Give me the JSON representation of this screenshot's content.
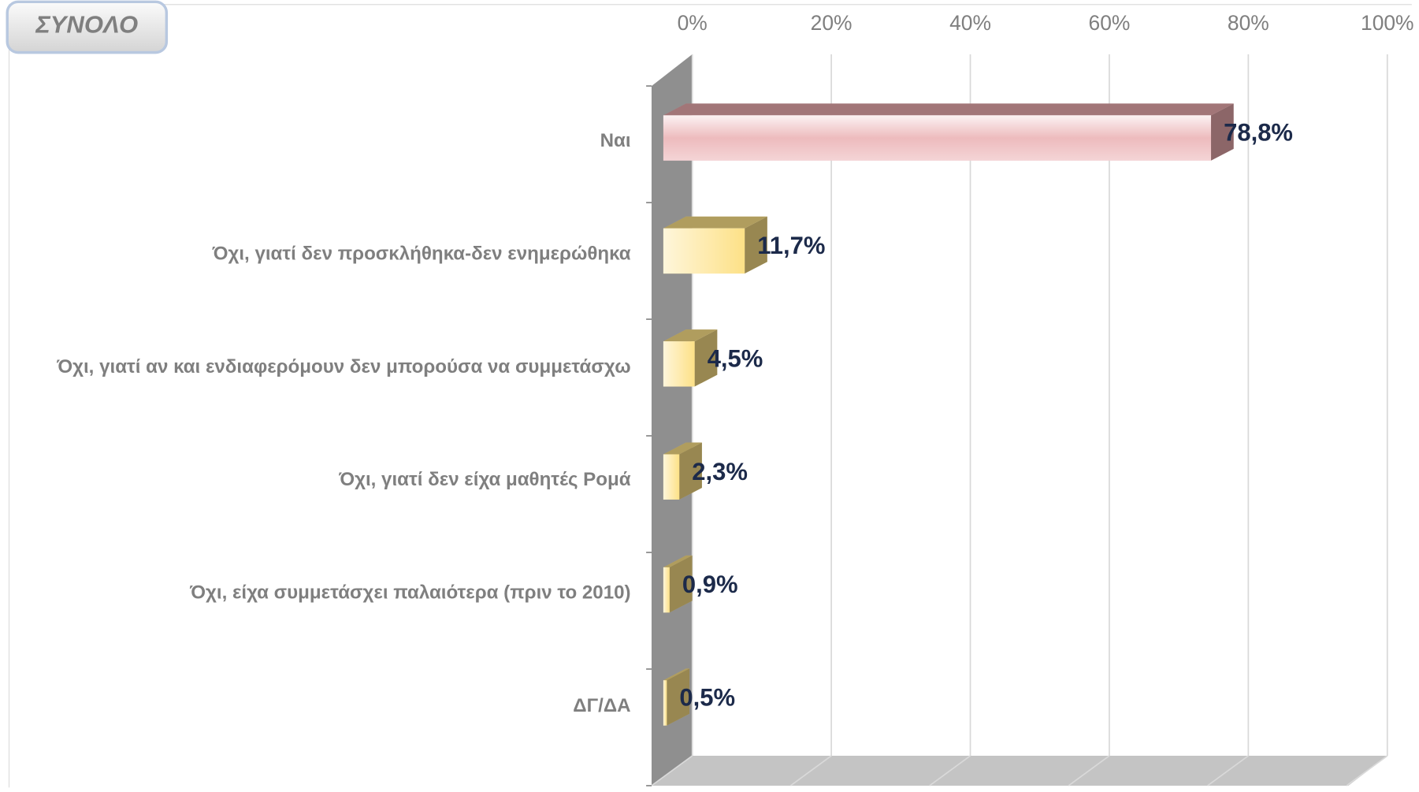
{
  "chart_data": {
    "type": "bar3d",
    "orientation": "horizontal",
    "title": "ΣΥΝΟΛΟ",
    "categories": [
      "Ναι",
      "Όχι, γιατί δεν προσκλήθηκα-δεν ενημερώθηκα",
      "Όχι, γιατί αν και ενδιαφερόμουν δεν μπορούσα να συμμετάσχω",
      "Όχι, γιατί δεν είχα μαθητές Ρομά",
      "Όχι, είχα συμμετάσχει παλαιότερα (πριν το 2010)",
      "ΔΓ/ΔΑ"
    ],
    "values": [
      78.8,
      11.7,
      4.5,
      2.3,
      0.9,
      0.5
    ],
    "value_labels": [
      "78,8%",
      "11,7%",
      "4,5%",
      "2,3%",
      "0,9%",
      "0,5%"
    ],
    "colors": [
      "#e9aaad",
      "#fde187",
      "#fde187",
      "#fde187",
      "#fde187",
      "#fde187"
    ],
    "xlim": [
      0,
      100
    ],
    "xticks": [
      {
        "value": 0,
        "label": "0%"
      },
      {
        "value": 20,
        "label": "20%"
      },
      {
        "value": 40,
        "label": "40%"
      },
      {
        "value": 60,
        "label": "60%"
      },
      {
        "value": 80,
        "label": "80%"
      },
      {
        "value": 100,
        "label": "100%"
      }
    ],
    "grid": true
  }
}
